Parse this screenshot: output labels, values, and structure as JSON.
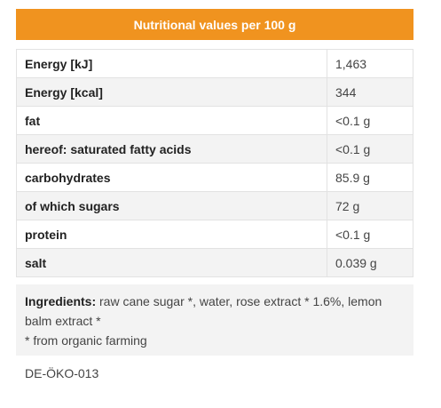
{
  "header": {
    "title": "Nutritional values per 100 g"
  },
  "table": {
    "rows": [
      [
        "Energy [kJ]",
        "1,463"
      ],
      [
        "Energy [kcal]",
        "344"
      ],
      [
        "fat",
        "<0.1 g"
      ],
      [
        "hereof: saturated fatty acids",
        "<0.1 g"
      ],
      [
        "carbohydrates",
        "85.9 g"
      ],
      [
        "of which sugars",
        "72 g"
      ],
      [
        "protein",
        "<0.1 g"
      ],
      [
        "salt",
        "0.039 g"
      ]
    ]
  },
  "ingredients": {
    "label": "Ingredients:",
    "text": "raw cane sugar *, water, rose extract * 1.6%, lemon balm extract *",
    "footnote": "* from organic farming"
  },
  "code": "DE-ÖKO-013"
}
